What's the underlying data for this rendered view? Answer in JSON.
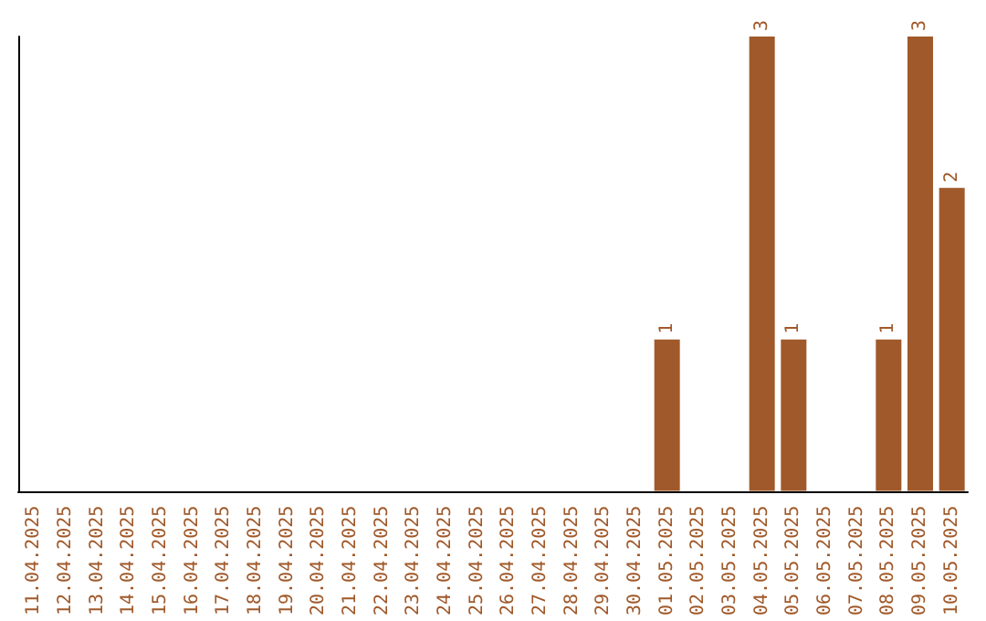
{
  "chart_data": {
    "type": "bar",
    "categories": [
      "11.04.2025",
      "12.04.2025",
      "13.04.2025",
      "14.04.2025",
      "15.04.2025",
      "16.04.2025",
      "17.04.2025",
      "18.04.2025",
      "19.04.2025",
      "20.04.2025",
      "21.04.2025",
      "22.04.2025",
      "23.04.2025",
      "24.04.2025",
      "25.04.2025",
      "26.04.2025",
      "27.04.2025",
      "28.04.2025",
      "29.04.2025",
      "30.04.2025",
      "01.05.2025",
      "02.05.2025",
      "03.05.2025",
      "04.05.2025",
      "05.05.2025",
      "06.05.2025",
      "07.05.2025",
      "08.05.2025",
      "09.05.2025",
      "10.05.2025"
    ],
    "values": [
      null,
      null,
      null,
      null,
      null,
      null,
      null,
      null,
      null,
      null,
      null,
      null,
      null,
      null,
      null,
      null,
      null,
      null,
      null,
      null,
      1,
      null,
      null,
      3,
      1,
      null,
      null,
      1,
      3,
      2
    ],
    "color": "#a0592a",
    "data_labels": true,
    "grid": false,
    "tick_labels": "x"
  }
}
